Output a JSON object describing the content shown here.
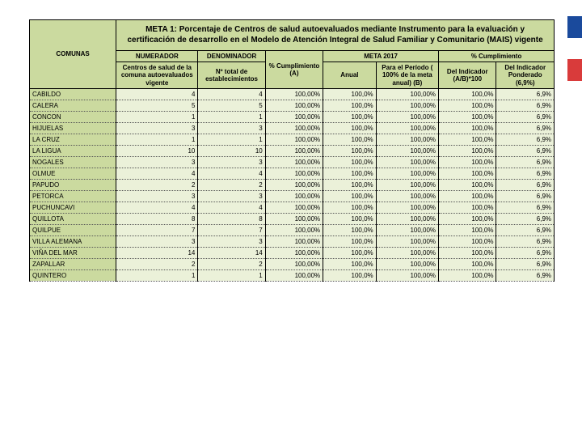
{
  "colors": {
    "green_header": "#cbda9f",
    "green_cell": "#ebf1d9",
    "stripe_blue": "#1a4a9c",
    "stripe_red": "#d93b3b",
    "border": "#000000",
    "dotted": "#555555"
  },
  "title": "META 1: Porcentaje de Centros de salud autoevaluados mediante Instrumento para la evaluación y certificación de desarrollo en el Modelo de Atención Integral de Salud Familiar y Comunitario (MAIS) vigente",
  "headers": {
    "numerador": "NUMERADOR",
    "denominador": "DENOMINADOR",
    "meta2017": "META 2017",
    "cumpl": "% Cumplimiento",
    "comunas": "COMUNAS",
    "sub_num": "Centros de salud de la comuna autoevaluados vigente",
    "sub_den": "Nº total de establecimientos",
    "sub_pct": "% Cumplimiento (A)",
    "sub_anual": "Anual",
    "sub_periodo": "Para el Período ( 100% de la meta anual) (B)",
    "sub_ind": "Del Indicador (A/B)*100",
    "sub_pond": "Del Indicador Ponderado (6,9%)"
  },
  "rows": [
    {
      "c": "CABILDO",
      "n": "4",
      "d": "4",
      "p": "100,00%",
      "a": "100,0%",
      "pe": "100,00%",
      "i": "100,0%",
      "po": "6,9%"
    },
    {
      "c": "CALERA",
      "n": "5",
      "d": "5",
      "p": "100,00%",
      "a": "100,0%",
      "pe": "100,00%",
      "i": "100,0%",
      "po": "6,9%"
    },
    {
      "c": "CONCON",
      "n": "1",
      "d": "1",
      "p": "100,00%",
      "a": "100,0%",
      "pe": "100,00%",
      "i": "100,0%",
      "po": "6,9%"
    },
    {
      "c": "HIJUELAS",
      "n": "3",
      "d": "3",
      "p": "100,00%",
      "a": "100,0%",
      "pe": "100,00%",
      "i": "100,0%",
      "po": "6,9%"
    },
    {
      "c": "LA CRUZ",
      "n": "1",
      "d": "1",
      "p": "100,00%",
      "a": "100,0%",
      "pe": "100,00%",
      "i": "100,0%",
      "po": "6,9%"
    },
    {
      "c": "LA LIGUA",
      "n": "10",
      "d": "10",
      "p": "100,00%",
      "a": "100,0%",
      "pe": "100,00%",
      "i": "100,0%",
      "po": "6,9%"
    },
    {
      "c": "NOGALES",
      "n": "3",
      "d": "3",
      "p": "100,00%",
      "a": "100,0%",
      "pe": "100,00%",
      "i": "100,0%",
      "po": "6,9%"
    },
    {
      "c": "OLMUE",
      "n": "4",
      "d": "4",
      "p": "100,00%",
      "a": "100,0%",
      "pe": "100,00%",
      "i": "100,0%",
      "po": "6,9%"
    },
    {
      "c": "PAPUDO",
      "n": "2",
      "d": "2",
      "p": "100,00%",
      "a": "100,0%",
      "pe": "100,00%",
      "i": "100,0%",
      "po": "6,9%"
    },
    {
      "c": "PETORCA",
      "n": "3",
      "d": "3",
      "p": "100,00%",
      "a": "100,0%",
      "pe": "100,00%",
      "i": "100,0%",
      "po": "6,9%"
    },
    {
      "c": "PUCHUNCAVI",
      "n": "4",
      "d": "4",
      "p": "100,00%",
      "a": "100,0%",
      "pe": "100,00%",
      "i": "100,0%",
      "po": "6,9%"
    },
    {
      "c": "QUILLOTA",
      "n": "8",
      "d": "8",
      "p": "100,00%",
      "a": "100,0%",
      "pe": "100,00%",
      "i": "100,0%",
      "po": "6,9%"
    },
    {
      "c": "QUILPUE",
      "n": "7",
      "d": "7",
      "p": "100,00%",
      "a": "100,0%",
      "pe": "100,00%",
      "i": "100,0%",
      "po": "6,9%"
    },
    {
      "c": "VILLA ALEMANA",
      "n": "3",
      "d": "3",
      "p": "100,00%",
      "a": "100,0%",
      "pe": "100,00%",
      "i": "100,0%",
      "po": "6,9%"
    },
    {
      "c": "VIÑA DEL MAR",
      "n": "14",
      "d": "14",
      "p": "100,00%",
      "a": "100,0%",
      "pe": "100,00%",
      "i": "100,0%",
      "po": "6,9%"
    },
    {
      "c": "ZAPALLAR",
      "n": "2",
      "d": "2",
      "p": "100,00%",
      "a": "100,0%",
      "pe": "100,00%",
      "i": "100,0%",
      "po": "6,9%"
    },
    {
      "c": "QUINTERO",
      "n": "1",
      "d": "1",
      "p": "100,00%",
      "a": "100,0%",
      "pe": "100,00%",
      "i": "100,0%",
      "po": "6,9%"
    }
  ]
}
